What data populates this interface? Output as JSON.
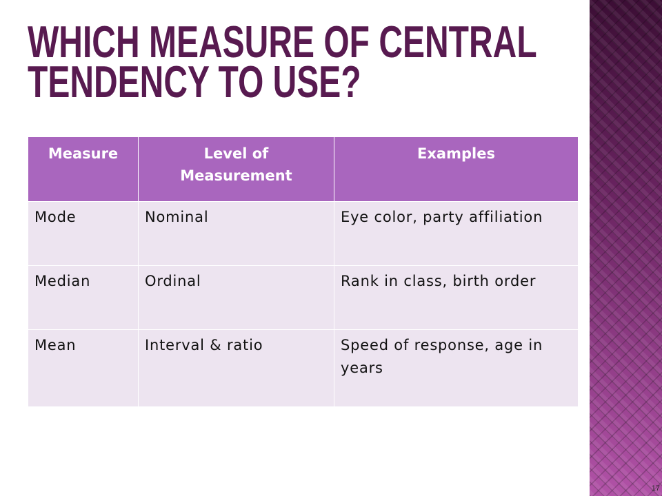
{
  "slide": {
    "title": "WHICH MEASURE OF CENTRAL TENDENCY TO USE?",
    "number": "17"
  },
  "table": {
    "headers": [
      "Measure",
      "Level of Measurement",
      "Examples"
    ],
    "rows": [
      [
        "Mode",
        "Nominal",
        "Eye color, party affiliation"
      ],
      [
        "Median",
        "Ordinal",
        "Rank in class, birth order"
      ],
      [
        "Mean",
        "Interval & ratio",
        "Speed of response, age in years"
      ]
    ]
  },
  "colors": {
    "title": "#581a50",
    "header_bg": "#a966be",
    "body_bg": "#ede4f0",
    "panel_top": "#3c0e35",
    "panel_mid": "#6a2461",
    "panel_bottom": "#b152a7"
  }
}
